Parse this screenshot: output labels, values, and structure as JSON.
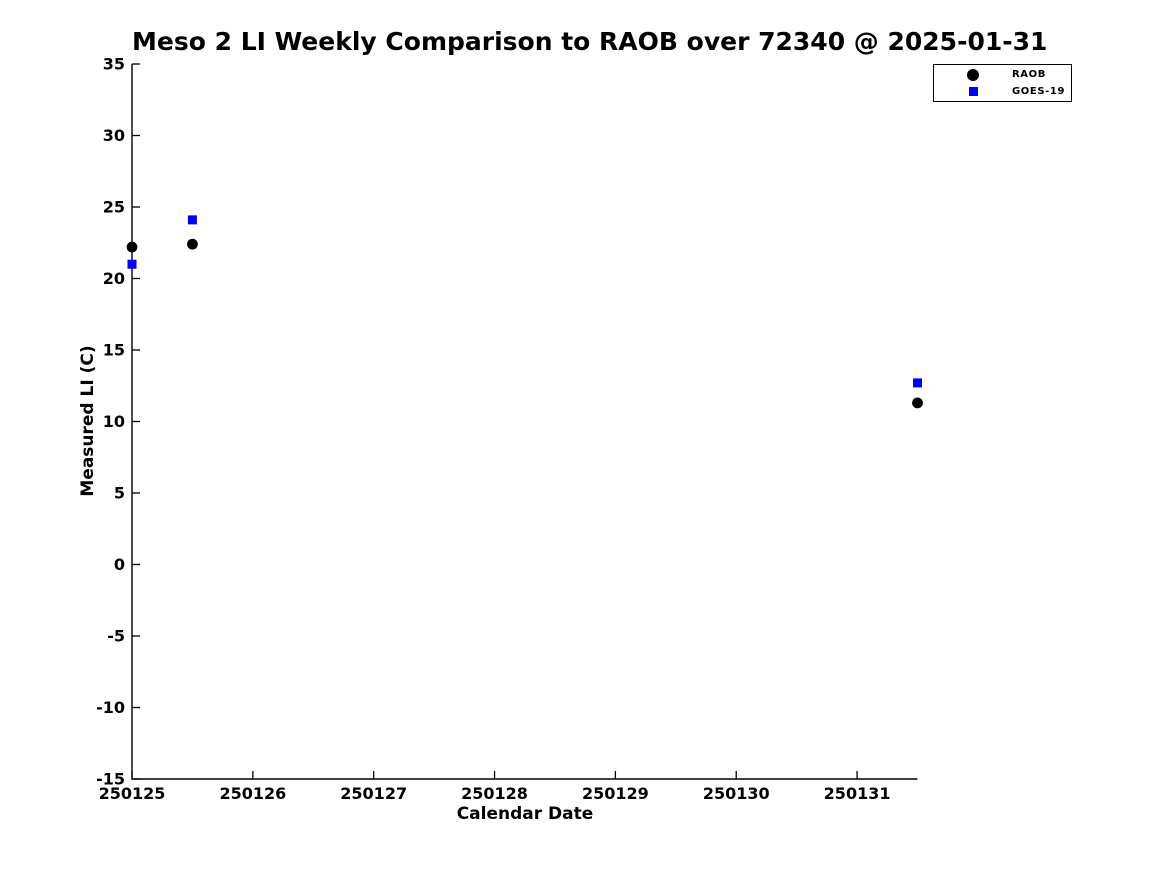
{
  "chart_data": {
    "type": "scatter",
    "title": "Meso 2 LI Weekly Comparison to RAOB over 72340 @ 2025-01-31",
    "xlabel": "Calendar Date",
    "ylabel": "Measured LI (C)",
    "xlim": [
      250125,
      250131.5
    ],
    "ylim": [
      -15,
      35
    ],
    "x_ticks": [
      250125,
      250126,
      250127,
      250128,
      250129,
      250130,
      250131
    ],
    "y_ticks": [
      -15,
      -10,
      -5,
      0,
      5,
      10,
      15,
      20,
      25,
      30,
      35
    ],
    "grid": false,
    "background_color": "#ffffff",
    "axis_color": "#000000",
    "legend_position": "top-right",
    "series": [
      {
        "name": "RAOB",
        "marker": "circle",
        "color": "#000000",
        "points": [
          [
            250125.0,
            22.2
          ],
          [
            250125.5,
            22.4
          ],
          [
            250131.5,
            11.3
          ]
        ]
      },
      {
        "name": "GOES-19",
        "marker": "square",
        "color": "#0000ff",
        "points": [
          [
            250125.0,
            21.0
          ],
          [
            250125.5,
            24.1
          ],
          [
            250131.5,
            12.7
          ]
        ]
      }
    ]
  }
}
